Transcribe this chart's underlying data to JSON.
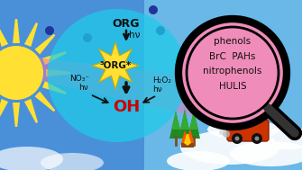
{
  "bg_sky_top": "#4a90d9",
  "bg_sky_bottom": "#5ba8e0",
  "sun_color": "#FFE033",
  "sun_ray_color": "#FFE033",
  "aerosol_color": "#1ecbe8",
  "aerosol_alpha": 0.72,
  "magnifier_bg": "#f08cba",
  "magnifier_edge": "#111111",
  "magnifier_text_color": "#111111",
  "magnifier_texts": [
    "phenols",
    "BrC  PAHs",
    "nitrophenols",
    "HULIS"
  ],
  "org_label": "ORG",
  "hv_label": "hν",
  "triplet_label": "³ORG*",
  "oh_label": "OH",
  "no3_label": "NO₃⁻",
  "h2o2_label": "H₂O₂",
  "oh_color": "#cc0000",
  "dark_dot_color": "#223399",
  "pink_beam_color": "#e878b8",
  "arrow_color": "#111111",
  "star_color": "#FFE033",
  "white": "#ffffff",
  "figsize": [
    3.35,
    1.89
  ],
  "dpi": 100
}
